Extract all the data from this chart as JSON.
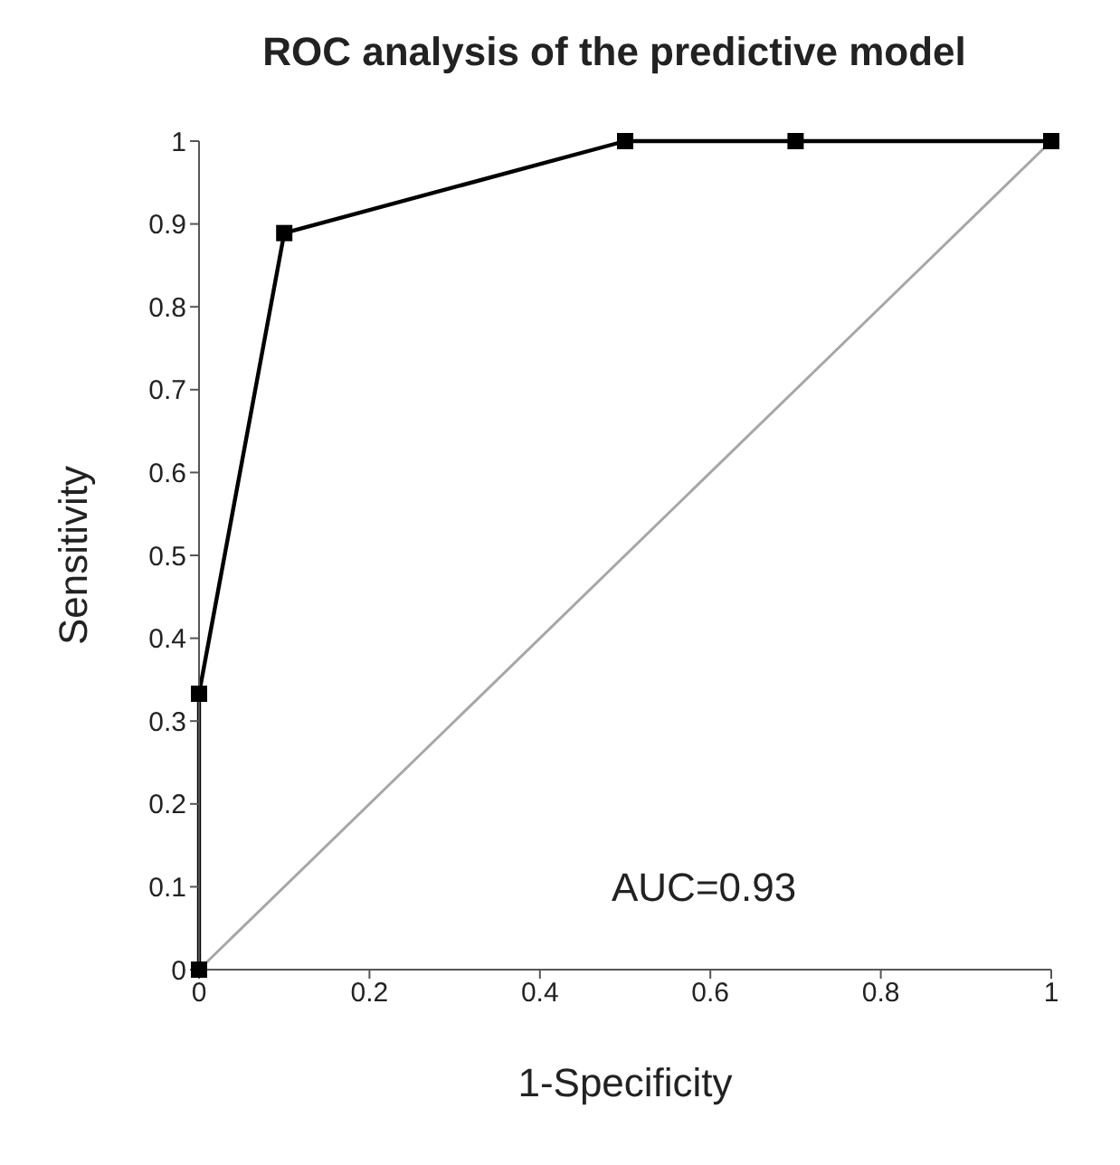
{
  "chart_data": {
    "type": "line",
    "title": "ROC analysis of the predictive model",
    "xlabel": "1-Specificity",
    "ylabel": "Sensitivity",
    "xlim": [
      0,
      1
    ],
    "ylim": [
      0,
      1
    ],
    "xticks": [
      0,
      0.2,
      0.4,
      0.6,
      0.8,
      1
    ],
    "yticks": [
      0,
      0.1,
      0.2,
      0.3,
      0.4,
      0.5,
      0.6,
      0.7,
      0.8,
      0.9,
      1
    ],
    "grid": false,
    "line_style": "solid",
    "series": [
      {
        "color": "#000000",
        "x": [
          0,
          0,
          0.1,
          0.5,
          0.7,
          1
        ],
        "values": [
          0,
          0.333,
          0.889,
          1,
          1,
          1
        ],
        "marker": "square"
      },
      {
        "color": "#a6a6a6",
        "x": [
          0,
          1
        ],
        "values": [
          0,
          1
        ]
      }
    ],
    "annotations": [
      "AUC=0.93"
    ]
  }
}
